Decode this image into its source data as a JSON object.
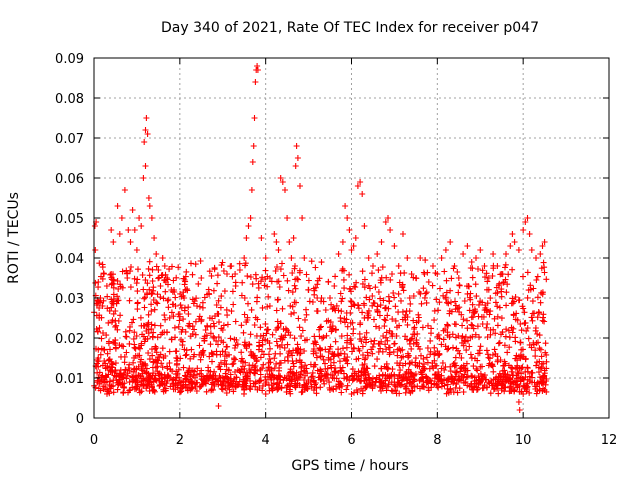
{
  "chart_data": {
    "type": "scatter",
    "title": "Day 340 of 2021, Rate Of TEC Index for receiver p047",
    "xlabel": "GPS time / hours",
    "ylabel": "ROTI / TECUs",
    "xlim": [
      0,
      12
    ],
    "ylim": [
      0,
      0.09
    ],
    "x_ticks": [
      "0",
      "2",
      "4",
      "6",
      "8",
      "10",
      "12"
    ],
    "y_ticks": [
      "0",
      "0.01",
      "0.02",
      "0.03",
      "0.04",
      "0.05",
      "0.06",
      "0.07",
      "0.08",
      "0.09"
    ],
    "grid": true,
    "marker": "+",
    "color": "#ff0000",
    "series": [
      {
        "name": "ROTI",
        "points": [
          [
            0.02,
            0.048
          ],
          [
            0.05,
            0.049
          ],
          [
            0.03,
            0.042
          ],
          [
            0.1,
            0.034
          ],
          [
            0.15,
            0.03
          ],
          [
            0.2,
            0.028
          ],
          [
            0.3,
            0.033
          ],
          [
            0.4,
            0.036
          ],
          [
            0.4,
            0.047
          ],
          [
            0.45,
            0.044
          ],
          [
            0.55,
            0.053
          ],
          [
            0.6,
            0.046
          ],
          [
            0.65,
            0.05
          ],
          [
            0.72,
            0.057
          ],
          [
            0.8,
            0.047
          ],
          [
            0.85,
            0.044
          ],
          [
            0.9,
            0.052
          ],
          [
            0.95,
            0.047
          ],
          [
            1.0,
            0.042
          ],
          [
            1.05,
            0.05
          ],
          [
            1.1,
            0.048
          ],
          [
            1.15,
            0.06
          ],
          [
            1.17,
            0.069
          ],
          [
            1.2,
            0.072
          ],
          [
            1.22,
            0.075
          ],
          [
            1.2,
            0.063
          ],
          [
            1.25,
            0.071
          ],
          [
            1.28,
            0.055
          ],
          [
            1.3,
            0.053
          ],
          [
            1.35,
            0.05
          ],
          [
            1.4,
            0.045
          ],
          [
            1.45,
            0.041
          ],
          [
            1.5,
            0.037
          ],
          [
            1.55,
            0.033
          ],
          [
            1.6,
            0.04
          ],
          [
            1.65,
            0.038
          ],
          [
            1.7,
            0.035
          ],
          [
            1.8,
            0.032
          ],
          [
            1.9,
            0.028
          ],
          [
            2.0,
            0.026
          ],
          [
            2.1,
            0.03
          ],
          [
            2.2,
            0.026
          ],
          [
            2.3,
            0.023
          ],
          [
            2.4,
            0.028
          ],
          [
            2.5,
            0.035
          ],
          [
            2.6,
            0.022
          ],
          [
            2.7,
            0.025
          ],
          [
            2.8,
            0.02
          ],
          [
            2.9,
            0.026
          ],
          [
            3.0,
            0.022
          ],
          [
            3.1,
            0.036
          ],
          [
            3.2,
            0.038
          ],
          [
            3.3,
            0.033
          ],
          [
            3.4,
            0.037
          ],
          [
            3.5,
            0.04
          ],
          [
            3.55,
            0.045
          ],
          [
            3.6,
            0.048
          ],
          [
            3.65,
            0.05
          ],
          [
            3.68,
            0.057
          ],
          [
            3.7,
            0.064
          ],
          [
            3.72,
            0.068
          ],
          [
            3.74,
            0.075
          ],
          [
            3.76,
            0.084
          ],
          [
            3.78,
            0.087
          ],
          [
            3.8,
            0.088
          ],
          [
            3.82,
            0.087
          ],
          [
            3.9,
            0.045
          ],
          [
            4.0,
            0.04
          ],
          [
            4.1,
            0.035
          ],
          [
            4.2,
            0.046
          ],
          [
            4.25,
            0.044
          ],
          [
            4.3,
            0.042
          ],
          [
            4.35,
            0.06
          ],
          [
            4.4,
            0.059
          ],
          [
            4.45,
            0.057
          ],
          [
            4.5,
            0.05
          ],
          [
            4.55,
            0.044
          ],
          [
            4.6,
            0.04
          ],
          [
            4.65,
            0.045
          ],
          [
            4.7,
            0.063
          ],
          [
            4.72,
            0.068
          ],
          [
            4.75,
            0.065
          ],
          [
            4.8,
            0.058
          ],
          [
            4.85,
            0.05
          ],
          [
            4.9,
            0.04
          ],
          [
            5.0,
            0.032
          ],
          [
            5.1,
            0.029
          ],
          [
            5.2,
            0.03
          ],
          [
            5.3,
            0.03
          ],
          [
            5.4,
            0.027
          ],
          [
            5.5,
            0.03
          ],
          [
            5.6,
            0.033
          ],
          [
            5.7,
            0.041
          ],
          [
            5.8,
            0.044
          ],
          [
            5.85,
            0.053
          ],
          [
            5.9,
            0.05
          ],
          [
            5.95,
            0.047
          ],
          [
            6.0,
            0.042
          ],
          [
            6.05,
            0.043
          ],
          [
            6.1,
            0.045
          ],
          [
            6.15,
            0.058
          ],
          [
            6.2,
            0.059
          ],
          [
            6.25,
            0.056
          ],
          [
            6.3,
            0.048
          ],
          [
            6.4,
            0.04
          ],
          [
            6.5,
            0.038
          ],
          [
            6.6,
            0.041
          ],
          [
            6.7,
            0.044
          ],
          [
            6.8,
            0.049
          ],
          [
            6.85,
            0.05
          ],
          [
            6.9,
            0.047
          ],
          [
            7.0,
            0.043
          ],
          [
            7.1,
            0.038
          ],
          [
            7.2,
            0.046
          ],
          [
            7.3,
            0.04
          ],
          [
            7.4,
            0.036
          ],
          [
            7.5,
            0.035
          ],
          [
            7.6,
            0.04
          ],
          [
            7.7,
            0.036
          ],
          [
            7.8,
            0.034
          ],
          [
            7.9,
            0.038
          ],
          [
            8.0,
            0.036
          ],
          [
            8.1,
            0.04
          ],
          [
            8.2,
            0.042
          ],
          [
            8.3,
            0.044
          ],
          [
            8.4,
            0.038
          ],
          [
            8.5,
            0.035
          ],
          [
            8.6,
            0.041
          ],
          [
            8.7,
            0.043
          ],
          [
            8.8,
            0.039
          ],
          [
            8.9,
            0.04
          ],
          [
            9.0,
            0.042
          ],
          [
            9.1,
            0.038
          ],
          [
            9.2,
            0.035
          ],
          [
            9.3,
            0.041
          ],
          [
            9.4,
            0.038
          ],
          [
            9.5,
            0.036
          ],
          [
            9.6,
            0.041
          ],
          [
            9.7,
            0.043
          ],
          [
            9.75,
            0.046
          ],
          [
            9.8,
            0.044
          ],
          [
            9.9,
            0.042
          ],
          [
            10.0,
            0.047
          ],
          [
            10.05,
            0.049
          ],
          [
            10.1,
            0.05
          ],
          [
            10.15,
            0.046
          ],
          [
            10.2,
            0.042
          ],
          [
            10.3,
            0.04
          ],
          [
            10.4,
            0.041
          ],
          [
            10.45,
            0.043
          ],
          [
            10.5,
            0.044
          ],
          [
            0.5,
            0.012
          ],
          [
            1.0,
            0.01
          ],
          [
            1.5,
            0.011
          ],
          [
            2.0,
            0.009
          ],
          [
            2.5,
            0.008
          ],
          [
            2.9,
            0.003
          ],
          [
            3.5,
            0.007
          ],
          [
            4.0,
            0.006
          ],
          [
            4.5,
            0.008
          ],
          [
            5.0,
            0.009
          ],
          [
            5.5,
            0.007
          ],
          [
            6.0,
            0.006
          ],
          [
            6.5,
            0.008
          ],
          [
            7.0,
            0.009
          ],
          [
            7.5,
            0.011
          ],
          [
            8.0,
            0.008
          ],
          [
            8.5,
            0.01
          ],
          [
            9.0,
            0.009
          ],
          [
            9.5,
            0.007
          ],
          [
            9.9,
            0.004
          ],
          [
            9.92,
            0.002
          ],
          [
            10.0,
            0.006
          ],
          [
            10.5,
            0.007
          ]
        ]
      }
    ]
  }
}
